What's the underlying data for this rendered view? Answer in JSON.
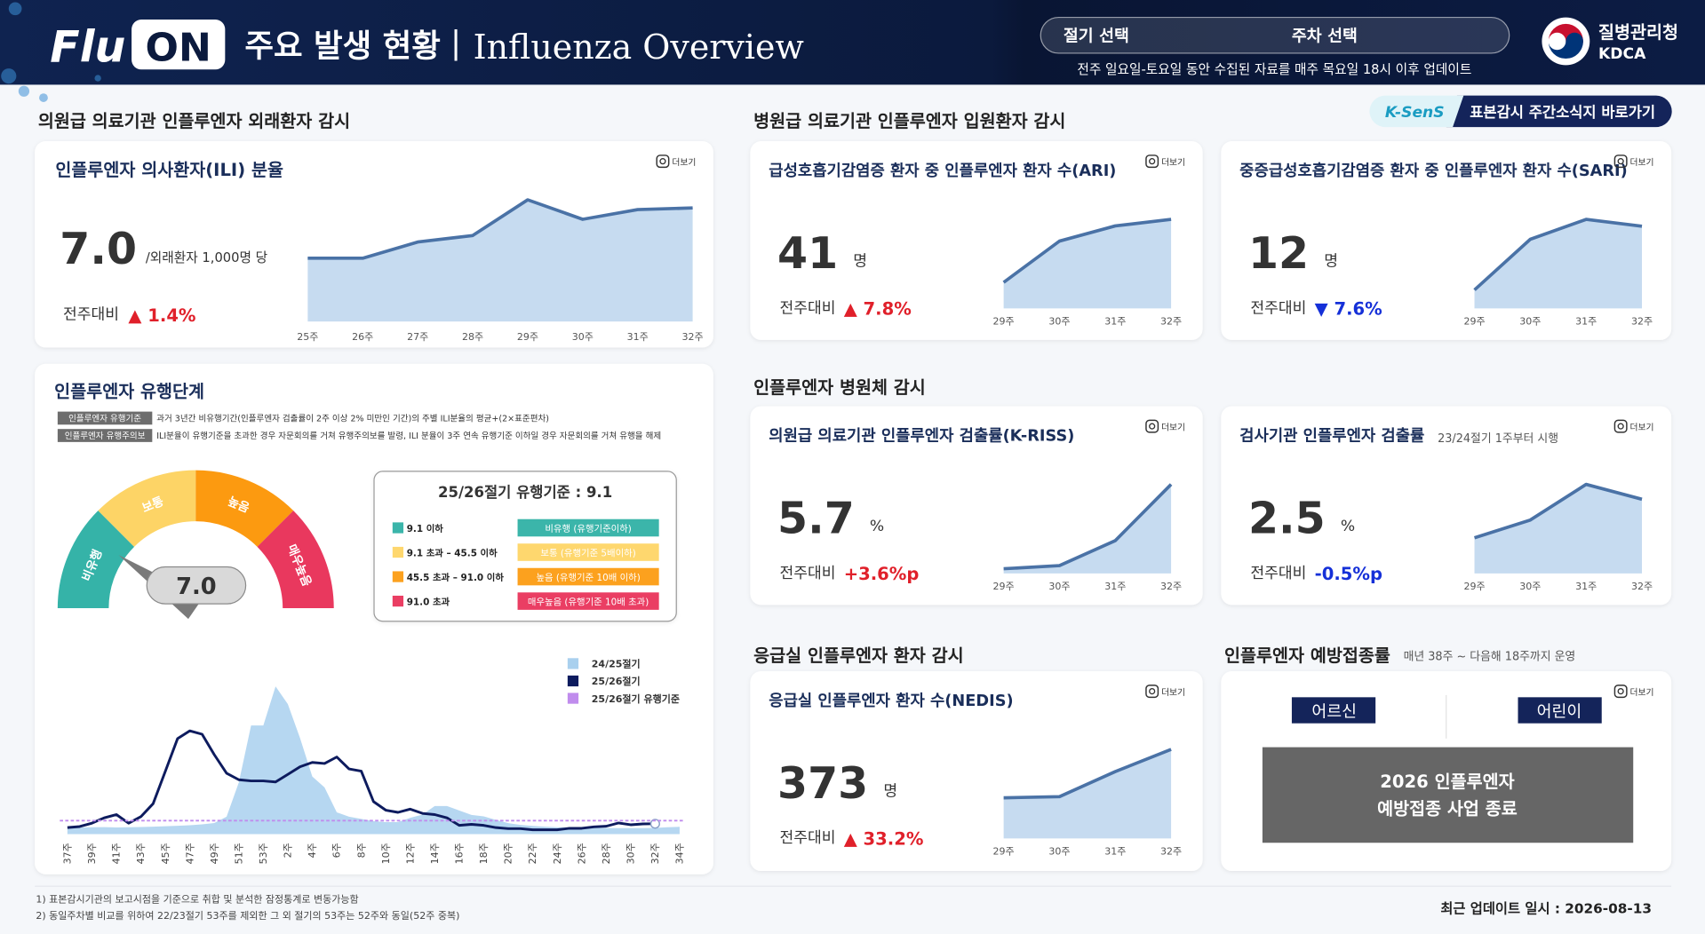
{
  "header": {
    "logo_a": "Flu",
    "logo_b": "ON",
    "title": "주요 발생 현황",
    "title_en": "Influenza Overview",
    "season_select": "절기 선택",
    "week_select": "주차 선택",
    "update_note": "전주 일요일-토요일 동안 수집된 자료를 매주 목요일 18시 이후 업데이트",
    "agency": "질병관리청",
    "agency_en": "KDCA"
  },
  "ksens": {
    "label": "K-SenS",
    "text": "표본감시 주간소식지 바로가기"
  },
  "sections": [
    {
      "title": "의원급 의료기관 인플루엔자 외래환자 감시"
    },
    {
      "title": "병원급 의료기관 인플루엔자 입원환자 감시"
    },
    {
      "title": "인플루엔자 병원체 감시"
    },
    {
      "title": "응급실 인플루엔자 환자 감시"
    },
    {
      "title": "인플루엔자 예방접종률",
      "note": "매년 38주 ~ 다음해 18주까지 운영"
    }
  ],
  "cards": [
    {
      "title": "인플루엔자 의사환자(ILI) 분율",
      "more": "더보기",
      "value": "7.0",
      "unit": "/외래환자 1,000명 당",
      "compare": "전주대비",
      "change": "▲ 1.4%",
      "change_color": "#e0202a",
      "chart": {
        "type": "area",
        "categories": [
          "25주",
          "26주",
          "27주",
          "28주",
          "29주",
          "30주",
          "31주",
          "32주"
        ],
        "values": [
          3.9,
          3.9,
          4.9,
          5.3,
          7.5,
          6.3,
          6.9,
          7.0
        ],
        "color": "#4a72a6",
        "fill": "#c6dbf0"
      }
    },
    {
      "title": "급성호흡기감염증 환자 중 인플루엔자 환자 수(ARI)",
      "more": "더보기",
      "value": "41",
      "unit": "명",
      "compare": "전주대비",
      "change": "▲ 7.8%",
      "change_color": "#e0202a",
      "chart": {
        "type": "area",
        "categories": [
          "29주",
          "30주",
          "31주",
          "32주"
        ],
        "values": [
          12,
          31,
          38,
          41
        ],
        "color": "#4a72a6",
        "fill": "#c6dbf0"
      }
    },
    {
      "title": "중증급성호흡기감염증 환자 중 인플루엔자 환자 수(SARI)",
      "more": "더보기",
      "value": "12",
      "unit": "명",
      "compare": "전주대비",
      "change": "▼ 7.6%",
      "change_color": "#1530d8",
      "chart": {
        "type": "area",
        "categories": [
          "29주",
          "30주",
          "31주",
          "32주"
        ],
        "values": [
          2.7,
          10.1,
          13,
          12
        ],
        "color": "#4a72a6",
        "fill": "#c6dbf0"
      }
    },
    {
      "title": "의원급 의료기관 인플루엔자 검출률(K-RISS)",
      "more": "더보기",
      "value": "5.7",
      "unit": "%",
      "compare": "전주대비",
      "change": "+3.6%p",
      "change_color": "#e0202a",
      "chart": {
        "type": "area",
        "categories": [
          "29주",
          "30주",
          "31주",
          "32주"
        ],
        "values": [
          0.3,
          0.5,
          2.1,
          5.7
        ],
        "color": "#4a72a6",
        "fill": "#c6dbf0"
      }
    },
    {
      "title": "검사기관 인플루엔자 검출률",
      "subtitle": "23/24절기 1주부터 시행",
      "more": "더보기",
      "value": "2.5",
      "unit": "%",
      "compare": "전주대비",
      "change": "-0.5%p",
      "change_color": "#1530d8",
      "chart": {
        "type": "area",
        "categories": [
          "29주",
          "30주",
          "31주",
          "32주"
        ],
        "values": [
          1.2,
          1.8,
          3.0,
          2.5
        ],
        "color": "#4a72a6",
        "fill": "#c6dbf0"
      }
    },
    {
      "title": "응급실 인플루엔자 환자 수(NEDIS)",
      "more": "더보기",
      "value": "373",
      "unit": "명",
      "compare": "전주대비",
      "change": "▲ 33.2%",
      "change_color": "#e0202a",
      "chart": {
        "type": "area",
        "categories": [
          "29주",
          "30주",
          "31주",
          "32주"
        ],
        "values": [
          170,
          175,
          280,
          373
        ],
        "color": "#4a72a6",
        "fill": "#c6dbf0"
      }
    }
  ],
  "stage": {
    "title": "인플루엔자 유행단계",
    "definitions": [
      {
        "tag": "인플루엔자 유행기준",
        "text": "과거 3년간 비유행기간(인플루엔자 검출률이 2주 이상 2% 미만인 기간)의 주별 ILI분율의 평균+(2×표준편차)"
      },
      {
        "tag": "인플루엔자 유행주의보",
        "text": "ILI분율이 유행기준을 초과한 경우 자문회의를 거쳐 유행주의보를 발령, ILI 분율이 3주 연속 유행기준 이하일 경우 자문회의를 거쳐 유행을 해제"
      }
    ],
    "gauge": {
      "value": "7.0",
      "thresholds": [
        9.1,
        45.5,
        91.0
      ],
      "segments": [
        {
          "label": "비유행",
          "color": "#35b3a8"
        },
        {
          "label": "보통",
          "color": "#fdd466"
        },
        {
          "label": "높음",
          "color": "#fc9a10"
        },
        {
          "label": "매우높음",
          "color": "#e9385e"
        }
      ]
    },
    "threshold_box": {
      "title": "25/26절기 유행기준 : 9.1",
      "rows": [
        {
          "range": "9.1 이하",
          "level": "비유행 (유행기준이하)",
          "color": "#3bb5aa",
          "text_color": "#ffffff"
        },
        {
          "range": "9.1 초과 – 45.5 이하",
          "level": "보통 (유행기준 5배이하)",
          "color": "#fed76e",
          "text_color": "#ffffff"
        },
        {
          "range": "45.5 초과 – 91.0 이하",
          "level": "높음 (유행기준 10배 이하)",
          "color": "#fca11e",
          "text_color": "#ffffff"
        },
        {
          "range": "91.0 초과",
          "level": "매우높음 (유행기준 10배 초과)",
          "color": "#ea3e63",
          "text_color": "#ffffff"
        }
      ]
    },
    "chart": {
      "type": "line",
      "categories": [
        "37주",
        null,
        "39주",
        null,
        "41주",
        null,
        "43주",
        null,
        "45주",
        null,
        "47주",
        null,
        "49주",
        null,
        "51주",
        null,
        "53주",
        null,
        "2주",
        null,
        "4주",
        null,
        "6주",
        null,
        "8주",
        null,
        "10주",
        null,
        "12주",
        null,
        "14주",
        null,
        "16주",
        null,
        "18주",
        null,
        "20주",
        null,
        "22주",
        null,
        "24주",
        null,
        "26주",
        null,
        "28주",
        null,
        "30주",
        null,
        "32주",
        null,
        "34주"
      ],
      "series": [
        {
          "name": "24/25절기",
          "color": "#a9d0ee",
          "style": "area",
          "values": [
            4.2,
            4.4,
            4.6,
            4.7,
            4.5,
            4.6,
            4.8,
            5.0,
            5.3,
            5.6,
            6.0,
            6.6,
            7.5,
            11.8,
            35.0,
            73.5,
            73.5,
            100,
            88,
            65,
            39,
            31.6,
            14.7,
            11.8,
            10.3,
            8.8,
            8.1,
            8.1,
            11.0,
            13.2,
            19.0,
            19.0,
            16.0,
            13.0,
            12.0,
            9.6,
            7.4,
            6.2,
            5.5,
            5.0,
            4.6,
            4.5,
            4.3,
            4.2,
            4.1,
            4.0,
            4.0,
            4.0,
            4.2,
            4.6,
            4.9
          ]
        },
        {
          "name": "25/26절기",
          "color": "#0d1b5e",
          "style": "line",
          "values": [
            4.4,
            5.1,
            7.4,
            11.0,
            13.2,
            7.4,
            11.8,
            20.6,
            42.6,
            64.7,
            69.9,
            67.6,
            53.7,
            41.2,
            36.8,
            36.0,
            36.0,
            35.3,
            40.4,
            45.6,
            48.5,
            47.8,
            52.2,
            44.1,
            42.6,
            22.0,
            16.2,
            14.7,
            16.9,
            14.0,
            13.2,
            11.0,
            5.9,
            6.6,
            5.9,
            4.4,
            3.7,
            3.7,
            2.9,
            2.9,
            2.9,
            3.9,
            3.9,
            4.9,
            5.3,
            7.5,
            6.3,
            6.9,
            7.0,
            null,
            null
          ]
        },
        {
          "name": "25/26절기 유행기준",
          "color": "#c08ced",
          "style": "dashed",
          "value": 9.1
        }
      ]
    }
  },
  "vaccination": {
    "more": "더보기",
    "tags": [
      "어르신",
      "어린이"
    ],
    "notice": [
      "2026 인플루엔자",
      "예방접종 사업 종료"
    ]
  },
  "footer": {
    "notes": [
      "1)   표본감시기관의 보고시점을 기준으로 취합 및 분석한 잠정통계로 변동가능함",
      "2)   동일주차별 비교를 위하여 22/23절기 53주를 제외한 그 외 절기의 53주는 52주와 동일(52주 중복)"
    ],
    "updated": "최근 업데이트 일시 : 2026-08-13"
  }
}
